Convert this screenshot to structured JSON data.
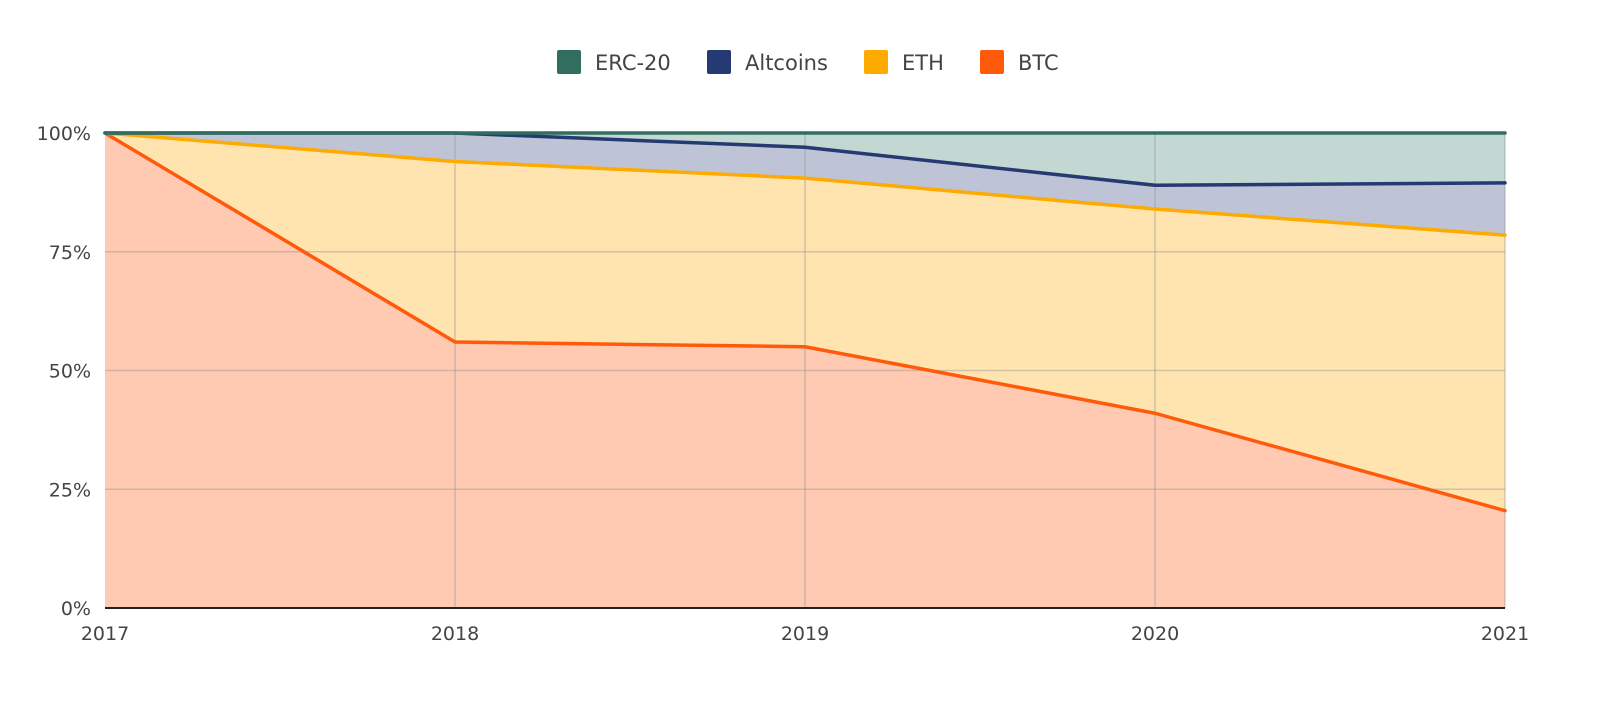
{
  "chart_data": {
    "type": "area",
    "stacked": true,
    "percent_stacked": true,
    "x": [
      "2017",
      "2018",
      "2019",
      "2020",
      "2021"
    ],
    "y_ticks": [
      "0%",
      "25%",
      "50%",
      "75%",
      "100%"
    ],
    "ylim": [
      0,
      100
    ],
    "grid": true,
    "legend_position": "top-center",
    "series": [
      {
        "name": "BTC",
        "key": "btc",
        "line_color": "#FF5A0A",
        "fill_color": "#FFC9B2",
        "cumulative": [
          100,
          56,
          55,
          41,
          20.5
        ]
      },
      {
        "name": "ETH",
        "key": "eth",
        "line_color": "#FFAA00",
        "fill_color": "#FFE4B0",
        "cumulative": [
          100,
          94,
          90.5,
          84,
          78.5
        ]
      },
      {
        "name": "Altcoins",
        "key": "altcoins",
        "line_color": "#253A73",
        "fill_color": "#BEC4D6",
        "cumulative": [
          100,
          100,
          97,
          89,
          89.5
        ]
      },
      {
        "name": "ERC-20",
        "key": "erc20",
        "line_color": "#326E5F",
        "fill_color": "#C3D8D2",
        "cumulative": [
          100,
          100,
          100,
          100,
          100
        ]
      }
    ],
    "legend_order": [
      "ERC-20",
      "Altcoins",
      "ETH",
      "BTC"
    ]
  }
}
